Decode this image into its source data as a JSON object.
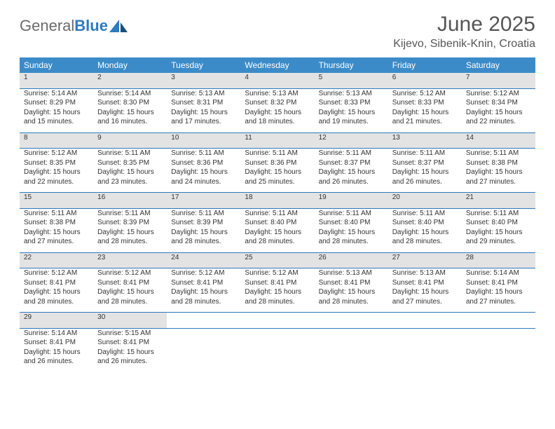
{
  "brand": {
    "name_gray": "General",
    "name_blue": "Blue"
  },
  "title": "June 2025",
  "location": "Kijevo, Sibenik-Knin, Croatia",
  "weekday_headers": [
    "Sunday",
    "Monday",
    "Tuesday",
    "Wednesday",
    "Thursday",
    "Friday",
    "Saturday"
  ],
  "colors": {
    "header_bg": "#3b8bc9",
    "header_text": "#ffffff",
    "daynum_bg": "#e3e3e3",
    "rule": "#2d7bc0",
    "text": "#333333",
    "brand_blue": "#2d7bc0",
    "brand_gray": "#6b6b6b"
  },
  "days": [
    {
      "n": 1,
      "sunrise": "5:14 AM",
      "sunset": "8:29 PM",
      "daylight": "15 hours and 15 minutes."
    },
    {
      "n": 2,
      "sunrise": "5:14 AM",
      "sunset": "8:30 PM",
      "daylight": "15 hours and 16 minutes."
    },
    {
      "n": 3,
      "sunrise": "5:13 AM",
      "sunset": "8:31 PM",
      "daylight": "15 hours and 17 minutes."
    },
    {
      "n": 4,
      "sunrise": "5:13 AM",
      "sunset": "8:32 PM",
      "daylight": "15 hours and 18 minutes."
    },
    {
      "n": 5,
      "sunrise": "5:13 AM",
      "sunset": "8:33 PM",
      "daylight": "15 hours and 19 minutes."
    },
    {
      "n": 6,
      "sunrise": "5:12 AM",
      "sunset": "8:33 PM",
      "daylight": "15 hours and 21 minutes."
    },
    {
      "n": 7,
      "sunrise": "5:12 AM",
      "sunset": "8:34 PM",
      "daylight": "15 hours and 22 minutes."
    },
    {
      "n": 8,
      "sunrise": "5:12 AM",
      "sunset": "8:35 PM",
      "daylight": "15 hours and 22 minutes."
    },
    {
      "n": 9,
      "sunrise": "5:11 AM",
      "sunset": "8:35 PM",
      "daylight": "15 hours and 23 minutes."
    },
    {
      "n": 10,
      "sunrise": "5:11 AM",
      "sunset": "8:36 PM",
      "daylight": "15 hours and 24 minutes."
    },
    {
      "n": 11,
      "sunrise": "5:11 AM",
      "sunset": "8:36 PM",
      "daylight": "15 hours and 25 minutes."
    },
    {
      "n": 12,
      "sunrise": "5:11 AM",
      "sunset": "8:37 PM",
      "daylight": "15 hours and 26 minutes."
    },
    {
      "n": 13,
      "sunrise": "5:11 AM",
      "sunset": "8:37 PM",
      "daylight": "15 hours and 26 minutes."
    },
    {
      "n": 14,
      "sunrise": "5:11 AM",
      "sunset": "8:38 PM",
      "daylight": "15 hours and 27 minutes."
    },
    {
      "n": 15,
      "sunrise": "5:11 AM",
      "sunset": "8:38 PM",
      "daylight": "15 hours and 27 minutes."
    },
    {
      "n": 16,
      "sunrise": "5:11 AM",
      "sunset": "8:39 PM",
      "daylight": "15 hours and 28 minutes."
    },
    {
      "n": 17,
      "sunrise": "5:11 AM",
      "sunset": "8:39 PM",
      "daylight": "15 hours and 28 minutes."
    },
    {
      "n": 18,
      "sunrise": "5:11 AM",
      "sunset": "8:40 PM",
      "daylight": "15 hours and 28 minutes."
    },
    {
      "n": 19,
      "sunrise": "5:11 AM",
      "sunset": "8:40 PM",
      "daylight": "15 hours and 28 minutes."
    },
    {
      "n": 20,
      "sunrise": "5:11 AM",
      "sunset": "8:40 PM",
      "daylight": "15 hours and 28 minutes."
    },
    {
      "n": 21,
      "sunrise": "5:11 AM",
      "sunset": "8:40 PM",
      "daylight": "15 hours and 29 minutes."
    },
    {
      "n": 22,
      "sunrise": "5:12 AM",
      "sunset": "8:41 PM",
      "daylight": "15 hours and 28 minutes."
    },
    {
      "n": 23,
      "sunrise": "5:12 AM",
      "sunset": "8:41 PM",
      "daylight": "15 hours and 28 minutes."
    },
    {
      "n": 24,
      "sunrise": "5:12 AM",
      "sunset": "8:41 PM",
      "daylight": "15 hours and 28 minutes."
    },
    {
      "n": 25,
      "sunrise": "5:12 AM",
      "sunset": "8:41 PM",
      "daylight": "15 hours and 28 minutes."
    },
    {
      "n": 26,
      "sunrise": "5:13 AM",
      "sunset": "8:41 PM",
      "daylight": "15 hours and 28 minutes."
    },
    {
      "n": 27,
      "sunrise": "5:13 AM",
      "sunset": "8:41 PM",
      "daylight": "15 hours and 27 minutes."
    },
    {
      "n": 28,
      "sunrise": "5:14 AM",
      "sunset": "8:41 PM",
      "daylight": "15 hours and 27 minutes."
    },
    {
      "n": 29,
      "sunrise": "5:14 AM",
      "sunset": "8:41 PM",
      "daylight": "15 hours and 26 minutes."
    },
    {
      "n": 30,
      "sunrise": "5:15 AM",
      "sunset": "8:41 PM",
      "daylight": "15 hours and 26 minutes."
    }
  ],
  "labels": {
    "sunrise": "Sunrise:",
    "sunset": "Sunset:",
    "daylight": "Daylight:"
  },
  "layout": {
    "columns": 7,
    "start_offset": 0
  }
}
